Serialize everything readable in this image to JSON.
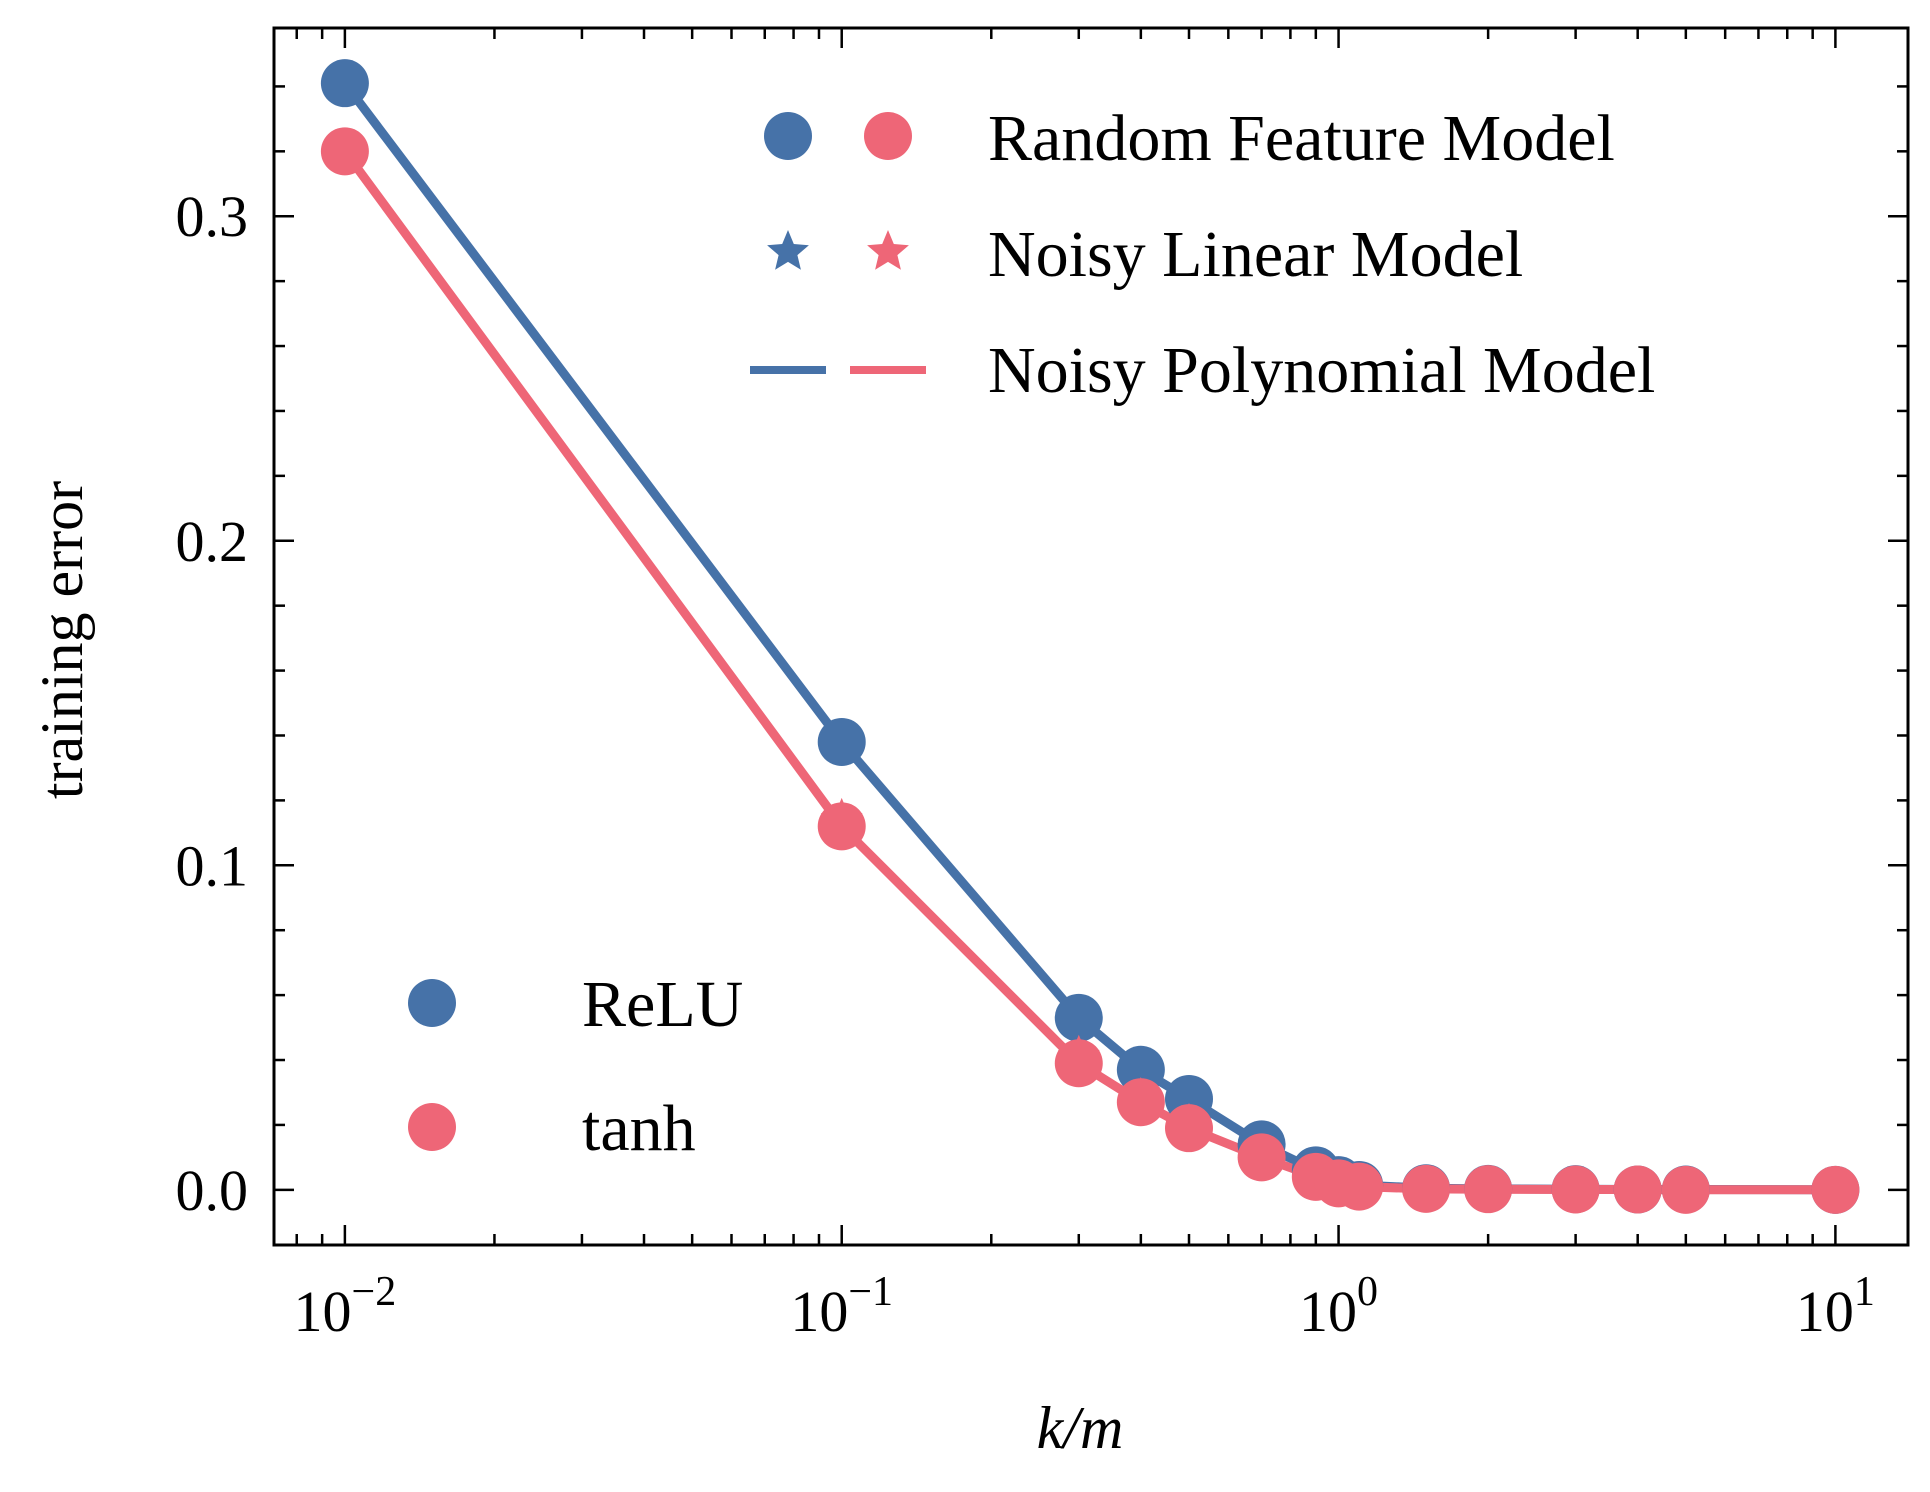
{
  "chart_data": {
    "type": "line",
    "xscale": "log",
    "xlabel": "k/m",
    "ylabel": "training error",
    "xlim": [
      0.0072,
      14
    ],
    "ylim": [
      -0.017,
      0.358
    ],
    "x_ticks": [
      {
        "value": 0.01,
        "base": "10",
        "exp": "−2"
      },
      {
        "value": 0.1,
        "base": "10",
        "exp": "−1"
      },
      {
        "value": 1,
        "base": "10",
        "exp": "0"
      },
      {
        "value": 10,
        "base": "10",
        "exp": "1"
      }
    ],
    "y_ticks": [
      {
        "value": 0.0,
        "label": "0.0"
      },
      {
        "value": 0.1,
        "label": "0.1"
      },
      {
        "value": 0.2,
        "label": "0.2"
      },
      {
        "value": 0.3,
        "label": "0.3"
      }
    ],
    "colors": {
      "relu": "#4672a8",
      "tanh": "#ee6677"
    },
    "series": [
      {
        "name": "ReLU",
        "color": "#4672a8",
        "x": [
          0.01,
          0.1,
          0.3,
          0.4,
          0.5,
          0.7,
          0.9,
          1.0,
          1.1,
          1.5,
          2.0,
          3.0,
          4.0,
          5.0,
          10.0
        ],
        "random_feature": [
          0.341,
          0.138,
          0.053,
          0.037,
          0.028,
          0.014,
          0.006,
          0.003,
          0.0015,
          0.0005,
          0.0003,
          0.0002,
          0.0001,
          0.0001,
          0.0
        ],
        "noisy_linear": [
          0.341,
          0.138,
          0.053,
          0.037,
          0.028,
          0.014,
          0.006,
          0.003,
          0.0015,
          0.0005,
          0.0003,
          0.0002,
          0.0001,
          0.0001,
          0.0
        ],
        "noisy_polynomial": [
          0.341,
          0.138,
          0.053,
          0.037,
          0.028,
          0.014,
          0.006,
          0.003,
          0.0015,
          0.0005,
          0.0003,
          0.0002,
          0.0001,
          0.0001,
          0.0
        ]
      },
      {
        "name": "tanh",
        "color": "#ee6677",
        "x": [
          0.01,
          0.1,
          0.3,
          0.4,
          0.5,
          0.7,
          0.9,
          1.0,
          1.1,
          1.5,
          2.0,
          3.0,
          4.0,
          5.0,
          10.0
        ],
        "random_feature": [
          0.32,
          0.112,
          0.039,
          0.027,
          0.019,
          0.01,
          0.004,
          0.002,
          0.001,
          0.0003,
          0.0002,
          0.0001,
          0.0001,
          0.0,
          0.0
        ],
        "noisy_linear": [
          0.32,
          0.114,
          0.041,
          0.028,
          0.02,
          0.01,
          0.004,
          0.002,
          0.001,
          0.0003,
          0.0002,
          0.0001,
          0.0001,
          0.0,
          0.0
        ],
        "noisy_polynomial": [
          0.32,
          0.112,
          0.039,
          0.027,
          0.019,
          0.01,
          0.004,
          0.002,
          0.001,
          0.0003,
          0.0002,
          0.0001,
          0.0001,
          0.0,
          0.0
        ]
      }
    ],
    "legend_models": {
      "placement": "top-right",
      "entries": [
        "Random Feature Model",
        "Noisy Linear Model",
        "Noisy Polynomial Model"
      ]
    },
    "legend_activations": {
      "placement": "lower-left",
      "entries": [
        "ReLU",
        "tanh"
      ]
    }
  }
}
